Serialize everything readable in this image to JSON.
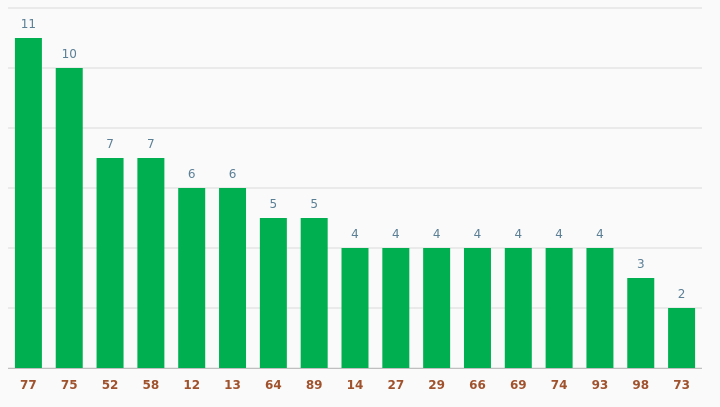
{
  "chart_data": {
    "type": "bar",
    "categories": [
      "77",
      "75",
      "52",
      "58",
      "12",
      "13",
      "64",
      "89",
      "14",
      "27",
      "29",
      "66",
      "69",
      "74",
      "93",
      "98",
      "73"
    ],
    "values": [
      11,
      10,
      7,
      7,
      6,
      6,
      5,
      5,
      4,
      4,
      4,
      4,
      4,
      4,
      4,
      3,
      2
    ],
    "title": "",
    "xlabel": "",
    "ylabel": "",
    "ylim": [
      0,
      12
    ],
    "grid": true,
    "legend": "none",
    "bar_color": "#00b050",
    "value_label_color": "#5b7f95",
    "category_label_color": "#a0522d",
    "gridline_color": "#d9d9d9",
    "axis_line_color": "#bfbfbf"
  }
}
